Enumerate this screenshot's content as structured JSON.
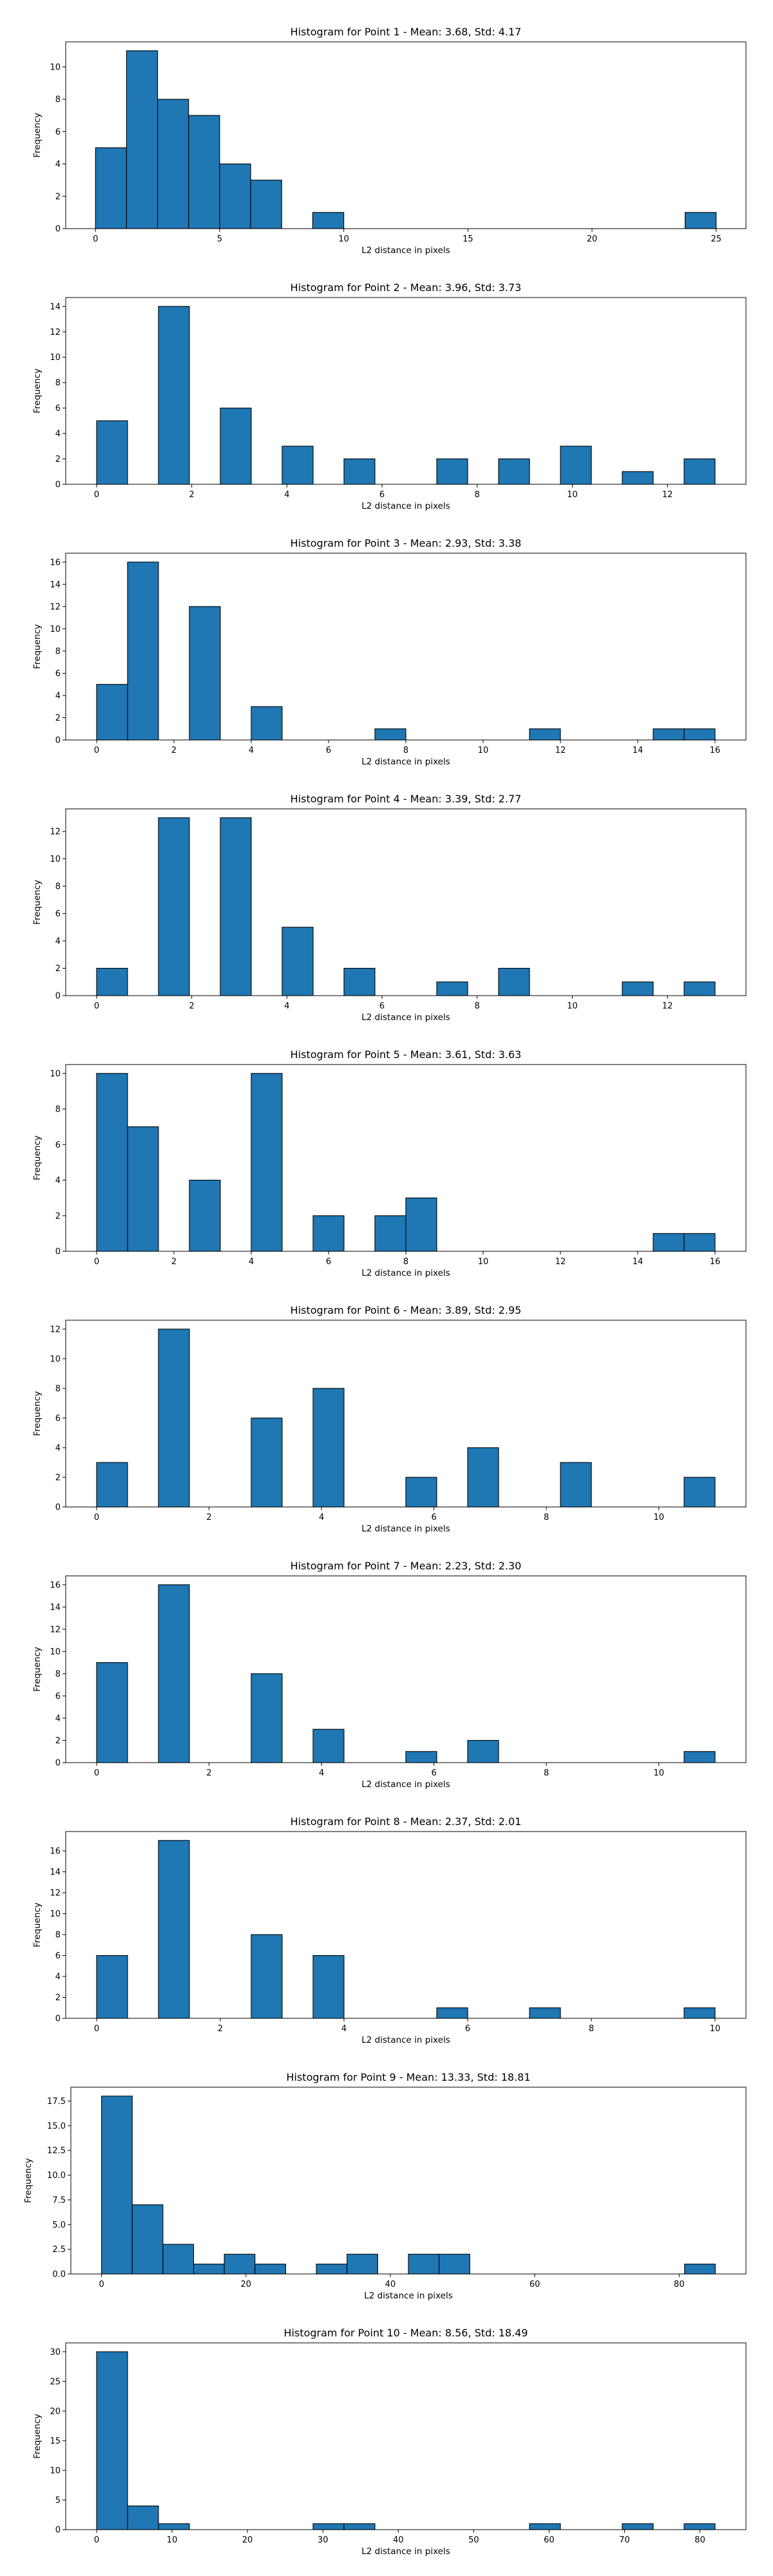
{
  "figure": {
    "bar_color": "#1f77b4",
    "edge_color": "#000000",
    "background": "#ffffff"
  },
  "chart_data": [
    {
      "type": "bar",
      "title": "Histogram for Point 1 - Mean: 3.68, Std: 4.17",
      "xlabel": "L2 distance in pixels",
      "ylabel": "Frequency",
      "xlim": [
        -1.2,
        26.2
      ],
      "ylim": [
        0,
        11.55
      ],
      "xticks": [
        0,
        5,
        10,
        15,
        20,
        25
      ],
      "yticks": [
        0,
        2,
        4,
        6,
        8,
        10
      ],
      "bin_width": 1.25,
      "bins": [
        [
          0,
          5
        ],
        [
          1.25,
          11
        ],
        [
          2.5,
          8
        ],
        [
          3.75,
          7
        ],
        [
          5,
          4
        ],
        [
          6.25,
          3
        ],
        [
          8.75,
          1
        ],
        [
          23.75,
          1
        ]
      ]
    },
    {
      "type": "bar",
      "title": "Histogram for Point 2 - Mean: 3.96, Std: 3.73",
      "xlabel": "L2 distance in pixels",
      "ylabel": "Frequency",
      "xlim": [
        -0.65,
        13.65
      ],
      "ylim": [
        0,
        14.7
      ],
      "xticks": [
        0,
        2,
        4,
        6,
        8,
        10,
        12
      ],
      "yticks": [
        0,
        2,
        4,
        6,
        8,
        10,
        12,
        14
      ],
      "bin_width": 0.65,
      "bins": [
        [
          0,
          5
        ],
        [
          1.3,
          14
        ],
        [
          2.6,
          6
        ],
        [
          3.9,
          3
        ],
        [
          5.2,
          2
        ],
        [
          7.15,
          2
        ],
        [
          8.45,
          2
        ],
        [
          9.75,
          3
        ],
        [
          11.05,
          1
        ],
        [
          12.35,
          2
        ]
      ]
    },
    {
      "type": "bar",
      "title": "Histogram for Point 3 - Mean: 2.93, Std: 3.38",
      "xlabel": "L2 distance in pixels",
      "ylabel": "Frequency",
      "xlim": [
        -0.8,
        16.8
      ],
      "ylim": [
        0,
        16.8
      ],
      "xticks": [
        0,
        2,
        4,
        6,
        8,
        10,
        12,
        14,
        16
      ],
      "yticks": [
        0,
        2,
        4,
        6,
        8,
        10,
        12,
        14,
        16
      ],
      "bin_width": 0.8,
      "bins": [
        [
          0,
          5
        ],
        [
          0.8,
          16
        ],
        [
          2.4,
          12
        ],
        [
          4.0,
          3
        ],
        [
          7.2,
          1
        ],
        [
          11.2,
          1
        ],
        [
          14.4,
          1
        ],
        [
          15.2,
          1
        ]
      ]
    },
    {
      "type": "bar",
      "title": "Histogram for Point 4 - Mean: 3.39, Std: 2.77",
      "xlabel": "L2 distance in pixels",
      "ylabel": "Frequency",
      "xlim": [
        -0.65,
        13.65
      ],
      "ylim": [
        0,
        13.65
      ],
      "xticks": [
        0,
        2,
        4,
        6,
        8,
        10,
        12
      ],
      "yticks": [
        0,
        2,
        4,
        6,
        8,
        10,
        12
      ],
      "bin_width": 0.65,
      "bins": [
        [
          0,
          2
        ],
        [
          1.3,
          13
        ],
        [
          2.6,
          13
        ],
        [
          3.9,
          5
        ],
        [
          5.2,
          2
        ],
        [
          7.15,
          1
        ],
        [
          8.45,
          2
        ],
        [
          11.05,
          1
        ],
        [
          12.35,
          1
        ]
      ]
    },
    {
      "type": "bar",
      "title": "Histogram for Point 5 - Mean: 3.61, Std: 3.63",
      "xlabel": "L2 distance in pixels",
      "ylabel": "Frequency",
      "xlim": [
        -0.8,
        16.8
      ],
      "ylim": [
        0,
        10.5
      ],
      "xticks": [
        0,
        2,
        4,
        6,
        8,
        10,
        12,
        14,
        16
      ],
      "yticks": [
        0,
        2,
        4,
        6,
        8,
        10
      ],
      "bin_width": 0.8,
      "bins": [
        [
          0,
          10
        ],
        [
          0.8,
          7
        ],
        [
          2.4,
          4
        ],
        [
          4.0,
          10
        ],
        [
          5.6,
          2
        ],
        [
          7.2,
          2
        ],
        [
          8.0,
          3
        ],
        [
          14.4,
          1
        ],
        [
          15.2,
          1
        ]
      ]
    },
    {
      "type": "bar",
      "title": "Histogram for Point 6 - Mean: 3.89, Std: 2.95",
      "xlabel": "L2 distance in pixels",
      "ylabel": "Frequency",
      "xlim": [
        -0.55,
        11.55
      ],
      "ylim": [
        0,
        12.6
      ],
      "xticks": [
        0,
        2,
        4,
        6,
        8,
        10
      ],
      "yticks": [
        0,
        2,
        4,
        6,
        8,
        10,
        12
      ],
      "bin_width": 0.55,
      "bins": [
        [
          0,
          3
        ],
        [
          1.1,
          12
        ],
        [
          2.75,
          6
        ],
        [
          3.85,
          8
        ],
        [
          5.5,
          2
        ],
        [
          6.6,
          4
        ],
        [
          8.25,
          3
        ],
        [
          10.45,
          2
        ]
      ]
    },
    {
      "type": "bar",
      "title": "Histogram for Point 7 - Mean: 2.23, Std: 2.30",
      "xlabel": "L2 distance in pixels",
      "ylabel": "Frequency",
      "xlim": [
        -0.55,
        11.55
      ],
      "ylim": [
        0,
        16.8
      ],
      "xticks": [
        0,
        2,
        4,
        6,
        8,
        10
      ],
      "yticks": [
        0,
        2,
        4,
        6,
        8,
        10,
        12,
        14,
        16
      ],
      "bin_width": 0.55,
      "bins": [
        [
          0,
          9
        ],
        [
          1.1,
          16
        ],
        [
          2.75,
          8
        ],
        [
          3.85,
          3
        ],
        [
          5.5,
          1
        ],
        [
          6.6,
          2
        ],
        [
          10.45,
          1
        ]
      ]
    },
    {
      "type": "bar",
      "title": "Histogram for Point 8 - Mean: 2.37, Std: 2.01",
      "xlabel": "L2 distance in pixels",
      "ylabel": "Frequency",
      "xlim": [
        -0.5,
        10.5
      ],
      "ylim": [
        0,
        17.85
      ],
      "xticks": [
        0,
        2,
        4,
        6,
        8,
        10
      ],
      "yticks": [
        0,
        2,
        4,
        6,
        8,
        10,
        12,
        14,
        16
      ],
      "bin_width": 0.5,
      "bins": [
        [
          0,
          6
        ],
        [
          1.0,
          17
        ],
        [
          2.5,
          8
        ],
        [
          3.5,
          6
        ],
        [
          5.5,
          1
        ],
        [
          7.0,
          1
        ],
        [
          9.5,
          1
        ]
      ]
    },
    {
      "type": "bar",
      "title": "Histogram for Point 9 - Mean: 13.33, Std: 18.81",
      "xlabel": "L2 distance in pixels",
      "ylabel": "Frequency",
      "xlim": [
        -4.25,
        89.25
      ],
      "ylim": [
        0,
        18.9
      ],
      "xticks": [
        0,
        20,
        40,
        60,
        80
      ],
      "yticks": [
        0,
        2.5,
        5.0,
        7.5,
        10.0,
        12.5,
        15.0,
        17.5
      ],
      "ytick_decimals": 1,
      "bin_width": 4.25,
      "bins": [
        [
          0,
          18
        ],
        [
          4.25,
          7
        ],
        [
          8.5,
          3
        ],
        [
          12.75,
          1
        ],
        [
          17.0,
          2
        ],
        [
          21.25,
          1
        ],
        [
          29.75,
          1
        ],
        [
          34.0,
          2
        ],
        [
          42.5,
          2
        ],
        [
          46.75,
          2
        ],
        [
          80.75,
          1
        ]
      ]
    },
    {
      "type": "bar",
      "title": "Histogram for Point 10 - Mean: 8.56, Std: 18.49",
      "xlabel": "L2 distance in pixels",
      "ylabel": "Frequency",
      "xlim": [
        -4.1,
        86.1
      ],
      "ylim": [
        0,
        31.5
      ],
      "xticks": [
        0,
        10,
        20,
        30,
        40,
        50,
        60,
        70,
        80
      ],
      "yticks": [
        0,
        5,
        10,
        15,
        20,
        25,
        30
      ],
      "bin_width": 4.1,
      "bins": [
        [
          0,
          30
        ],
        [
          4.1,
          4
        ],
        [
          8.2,
          1
        ],
        [
          28.7,
          1
        ],
        [
          32.8,
          1
        ],
        [
          57.4,
          1
        ],
        [
          69.7,
          1
        ],
        [
          77.9,
          1
        ]
      ]
    }
  ]
}
